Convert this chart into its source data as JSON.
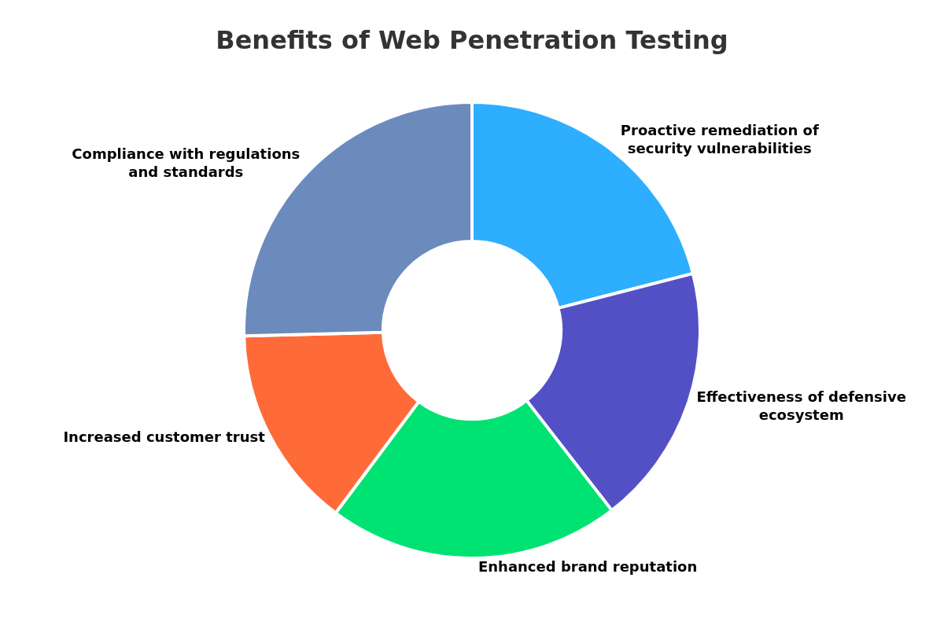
{
  "chart_data": {
    "type": "donut",
    "title": "Benefits of Web Penetration Testing",
    "categories": [
      "Proactive remediation of security vulnerabilities",
      "Effectiveness of defensive ecosystem",
      "Enhanced brand reputation",
      "Increased customer trust",
      "Compliance with regulations and standards"
    ],
    "values": [
      21,
      18.5,
      20.7,
      14.4,
      25.4
    ],
    "colors": [
      "#2eaeff",
      "#5350c6",
      "#00e272",
      "#ff6b38",
      "#6b8bbc"
    ],
    "legend": false
  }
}
